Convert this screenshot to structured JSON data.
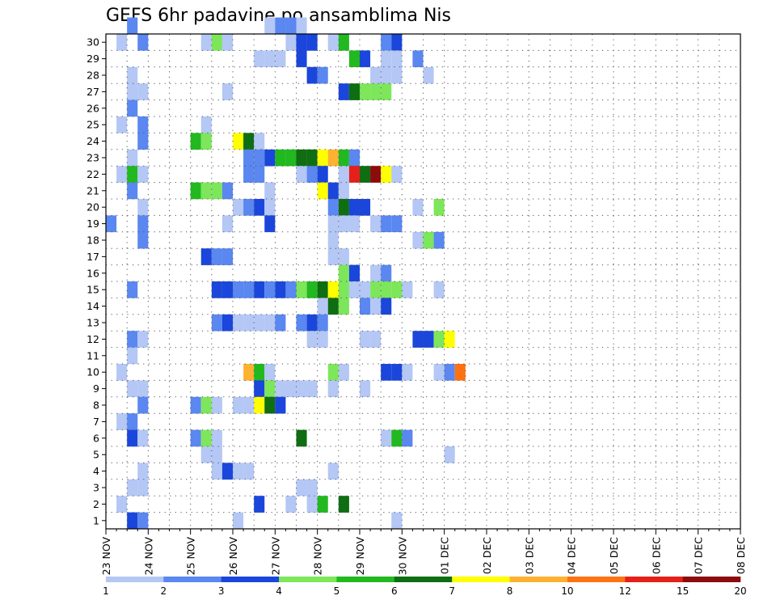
{
  "chart_data": {
    "type": "heatmap",
    "title": "GEFS 6hr padavine po ansamblima Nis",
    "xlabel": "",
    "ylabel": "",
    "x_tick_labels": [
      "23 NOV",
      "24 NOV",
      "25 NOV",
      "26 NOV",
      "27 NOV",
      "28 NOV",
      "29 NOV",
      "30 NOV",
      "01 DEC",
      "02 DEC",
      "03 DEC",
      "04 DEC",
      "05 DEC",
      "06 DEC",
      "07 DEC",
      "08 DEC"
    ],
    "y_tick_labels": [
      "1",
      "2",
      "3",
      "4",
      "5",
      "6",
      "7",
      "8",
      "9",
      "10",
      "11",
      "12",
      "13",
      "14",
      "15",
      "16",
      "17",
      "18",
      "19",
      "20",
      "21",
      "22",
      "23",
      "24",
      "25",
      "26",
      "27",
      "28",
      "29",
      "30"
    ],
    "ylim": [
      0,
      30
    ],
    "x_unit": "6-hour steps from 23 NOV",
    "grid": "dotted",
    "colorbar": {
      "placement": "bottom",
      "tick_labels": [
        "1",
        "2",
        "3",
        "4",
        "5",
        "6",
        "7",
        "8",
        "10",
        "12",
        "15",
        "20"
      ],
      "colors": [
        "#b4c7f5",
        "#5a87f0",
        "#1a46db",
        "#7de65a",
        "#21b91f",
        "#0e6e11",
        "#ffff00",
        "#ffb132",
        "#ff7212",
        "#e52019",
        "#8c0b0b"
      ]
    },
    "cells": [
      [
        2,
        30,
        1
      ],
      [
        15,
        30,
        0
      ],
      [
        16,
        30,
        1
      ],
      [
        17,
        30,
        1
      ],
      [
        18,
        30,
        0
      ],
      [
        1,
        29,
        0
      ],
      [
        3,
        29,
        1
      ],
      [
        9,
        29,
        0
      ],
      [
        10,
        29,
        3
      ],
      [
        11,
        29,
        0
      ],
      [
        17,
        29,
        0
      ],
      [
        18,
        29,
        2
      ],
      [
        19,
        29,
        2
      ],
      [
        21,
        29,
        0
      ],
      [
        22,
        29,
        4
      ],
      [
        26,
        29,
        1
      ],
      [
        27,
        29,
        2
      ],
      [
        14,
        28,
        0
      ],
      [
        15,
        28,
        0
      ],
      [
        16,
        28,
        0
      ],
      [
        18,
        28,
        2
      ],
      [
        23,
        28,
        4
      ],
      [
        24,
        28,
        2
      ],
      [
        26,
        28,
        0
      ],
      [
        27,
        28,
        0
      ],
      [
        29,
        28,
        1
      ],
      [
        2,
        27,
        0
      ],
      [
        19,
        27,
        2
      ],
      [
        20,
        27,
        1
      ],
      [
        25,
        27,
        0
      ],
      [
        26,
        27,
        0
      ],
      [
        27,
        27,
        0
      ],
      [
        30,
        27,
        0
      ],
      [
        2,
        26,
        0
      ],
      [
        3,
        26,
        0
      ],
      [
        11,
        26,
        0
      ],
      [
        22,
        26,
        2
      ],
      [
        23,
        26,
        5
      ],
      [
        24,
        26,
        3
      ],
      [
        25,
        26,
        3
      ],
      [
        26,
        26,
        3
      ],
      [
        2,
        25,
        1
      ],
      [
        1,
        24,
        0
      ],
      [
        3,
        24,
        1
      ],
      [
        9,
        24,
        0
      ],
      [
        3,
        23,
        1
      ],
      [
        8,
        23,
        4
      ],
      [
        9,
        23,
        3
      ],
      [
        12,
        23,
        6
      ],
      [
        13,
        23,
        5
      ],
      [
        14,
        23,
        0
      ],
      [
        2,
        22,
        0
      ],
      [
        13,
        22,
        1
      ],
      [
        14,
        22,
        1
      ],
      [
        15,
        22,
        2
      ],
      [
        16,
        22,
        4
      ],
      [
        17,
        22,
        4
      ],
      [
        18,
        22,
        5
      ],
      [
        19,
        22,
        5
      ],
      [
        20,
        22,
        6
      ],
      [
        21,
        22,
        7
      ],
      [
        22,
        22,
        4
      ],
      [
        23,
        22,
        1
      ],
      [
        1,
        21,
        0
      ],
      [
        2,
        21,
        4
      ],
      [
        3,
        21,
        0
      ],
      [
        13,
        21,
        1
      ],
      [
        14,
        21,
        1
      ],
      [
        18,
        21,
        0
      ],
      [
        19,
        21,
        1
      ],
      [
        20,
        21,
        2
      ],
      [
        22,
        21,
        0
      ],
      [
        23,
        21,
        9
      ],
      [
        24,
        21,
        5
      ],
      [
        25,
        21,
        10
      ],
      [
        26,
        21,
        6
      ],
      [
        27,
        21,
        0
      ],
      [
        2,
        20,
        1
      ],
      [
        8,
        20,
        4
      ],
      [
        9,
        20,
        3
      ],
      [
        10,
        20,
        3
      ],
      [
        11,
        20,
        1
      ],
      [
        15,
        20,
        0
      ],
      [
        20,
        20,
        6
      ],
      [
        21,
        20,
        2
      ],
      [
        22,
        20,
        0
      ],
      [
        3,
        19,
        0
      ],
      [
        12,
        19,
        0
      ],
      [
        13,
        19,
        1
      ],
      [
        14,
        19,
        2
      ],
      [
        15,
        19,
        0
      ],
      [
        21,
        19,
        1
      ],
      [
        22,
        19,
        5
      ],
      [
        23,
        19,
        2
      ],
      [
        24,
        19,
        2
      ],
      [
        29,
        19,
        0
      ],
      [
        31,
        19,
        3
      ],
      [
        0,
        18,
        1
      ],
      [
        3,
        18,
        1
      ],
      [
        11,
        18,
        0
      ],
      [
        15,
        18,
        2
      ],
      [
        21,
        18,
        0
      ],
      [
        22,
        18,
        0
      ],
      [
        23,
        18,
        0
      ],
      [
        25,
        18,
        0
      ],
      [
        26,
        18,
        1
      ],
      [
        27,
        18,
        1
      ],
      [
        3,
        17,
        1
      ],
      [
        21,
        17,
        0
      ],
      [
        29,
        17,
        0
      ],
      [
        30,
        17,
        3
      ],
      [
        31,
        17,
        1
      ],
      [
        9,
        16,
        2
      ],
      [
        10,
        16,
        1
      ],
      [
        11,
        16,
        1
      ],
      [
        21,
        16,
        0
      ],
      [
        22,
        16,
        0
      ],
      [
        22,
        15,
        3
      ],
      [
        23,
        15,
        2
      ],
      [
        25,
        15,
        0
      ],
      [
        26,
        15,
        1
      ],
      [
        2,
        14,
        1
      ],
      [
        10,
        14,
        2
      ],
      [
        11,
        14,
        2
      ],
      [
        12,
        14,
        1
      ],
      [
        13,
        14,
        1
      ],
      [
        14,
        14,
        2
      ],
      [
        15,
        14,
        1
      ],
      [
        16,
        14,
        2
      ],
      [
        17,
        14,
        1
      ],
      [
        18,
        14,
        3
      ],
      [
        19,
        14,
        4
      ],
      [
        20,
        14,
        5
      ],
      [
        21,
        14,
        6
      ],
      [
        22,
        14,
        3
      ],
      [
        23,
        14,
        0
      ],
      [
        24,
        14,
        0
      ],
      [
        25,
        14,
        3
      ],
      [
        26,
        14,
        3
      ],
      [
        27,
        14,
        3
      ],
      [
        28,
        14,
        0
      ],
      [
        31,
        14,
        0
      ],
      [
        20,
        13,
        0
      ],
      [
        21,
        13,
        5
      ],
      [
        22,
        13,
        3
      ],
      [
        24,
        13,
        1
      ],
      [
        25,
        13,
        0
      ],
      [
        26,
        13,
        2
      ],
      [
        10,
        12,
        1
      ],
      [
        11,
        12,
        2
      ],
      [
        12,
        12,
        0
      ],
      [
        13,
        12,
        0
      ],
      [
        14,
        12,
        0
      ],
      [
        15,
        12,
        0
      ],
      [
        16,
        12,
        1
      ],
      [
        18,
        12,
        1
      ],
      [
        19,
        12,
        2
      ],
      [
        20,
        12,
        1
      ],
      [
        2,
        11,
        1
      ],
      [
        3,
        11,
        0
      ],
      [
        19,
        11,
        0
      ],
      [
        20,
        11,
        0
      ],
      [
        24,
        11,
        0
      ],
      [
        25,
        11,
        0
      ],
      [
        29,
        11,
        2
      ],
      [
        30,
        11,
        2
      ],
      [
        31,
        11,
        3
      ],
      [
        32,
        11,
        6
      ],
      [
        2,
        10,
        0
      ],
      [
        1,
        9,
        0
      ],
      [
        13,
        9,
        7
      ],
      [
        14,
        9,
        4
      ],
      [
        15,
        9,
        0
      ],
      [
        21,
        9,
        3
      ],
      [
        22,
        9,
        0
      ],
      [
        26,
        9,
        2
      ],
      [
        27,
        9,
        2
      ],
      [
        28,
        9,
        0
      ],
      [
        31,
        9,
        0
      ],
      [
        32,
        9,
        1
      ],
      [
        33,
        9,
        8
      ],
      [
        2,
        8,
        0
      ],
      [
        3,
        8,
        0
      ],
      [
        14,
        8,
        2
      ],
      [
        15,
        8,
        3
      ],
      [
        16,
        8,
        0
      ],
      [
        17,
        8,
        0
      ],
      [
        18,
        8,
        0
      ],
      [
        19,
        8,
        0
      ],
      [
        21,
        8,
        0
      ],
      [
        24,
        8,
        0
      ],
      [
        3,
        7,
        1
      ],
      [
        8,
        7,
        1
      ],
      [
        9,
        7,
        3
      ],
      [
        10,
        7,
        0
      ],
      [
        12,
        7,
        0
      ],
      [
        13,
        7,
        0
      ],
      [
        14,
        7,
        6
      ],
      [
        15,
        7,
        5
      ],
      [
        16,
        7,
        2
      ],
      [
        1,
        6,
        0
      ],
      [
        2,
        6,
        1
      ],
      [
        2,
        5,
        2
      ],
      [
        3,
        5,
        0
      ],
      [
        8,
        5,
        1
      ],
      [
        9,
        5,
        3
      ],
      [
        10,
        5,
        0
      ],
      [
        18,
        5,
        5
      ],
      [
        26,
        5,
        0
      ],
      [
        27,
        5,
        4
      ],
      [
        28,
        5,
        1
      ],
      [
        9,
        4,
        0
      ],
      [
        10,
        4,
        0
      ],
      [
        32,
        4,
        0
      ],
      [
        3,
        3,
        0
      ],
      [
        10,
        3,
        0
      ],
      [
        11,
        3,
        2
      ],
      [
        12,
        3,
        0
      ],
      [
        13,
        3,
        0
      ],
      [
        21,
        3,
        0
      ],
      [
        2,
        2,
        0
      ],
      [
        3,
        2,
        0
      ],
      [
        18,
        2,
        0
      ],
      [
        19,
        2,
        0
      ],
      [
        1,
        1,
        0
      ],
      [
        14,
        1,
        2
      ],
      [
        17,
        1,
        0
      ],
      [
        19,
        1,
        0
      ],
      [
        20,
        1,
        4
      ],
      [
        22,
        1,
        5
      ],
      [
        2,
        0,
        2
      ],
      [
        3,
        0,
        1
      ],
      [
        12,
        0,
        0
      ],
      [
        27,
        0,
        0
      ]
    ]
  }
}
